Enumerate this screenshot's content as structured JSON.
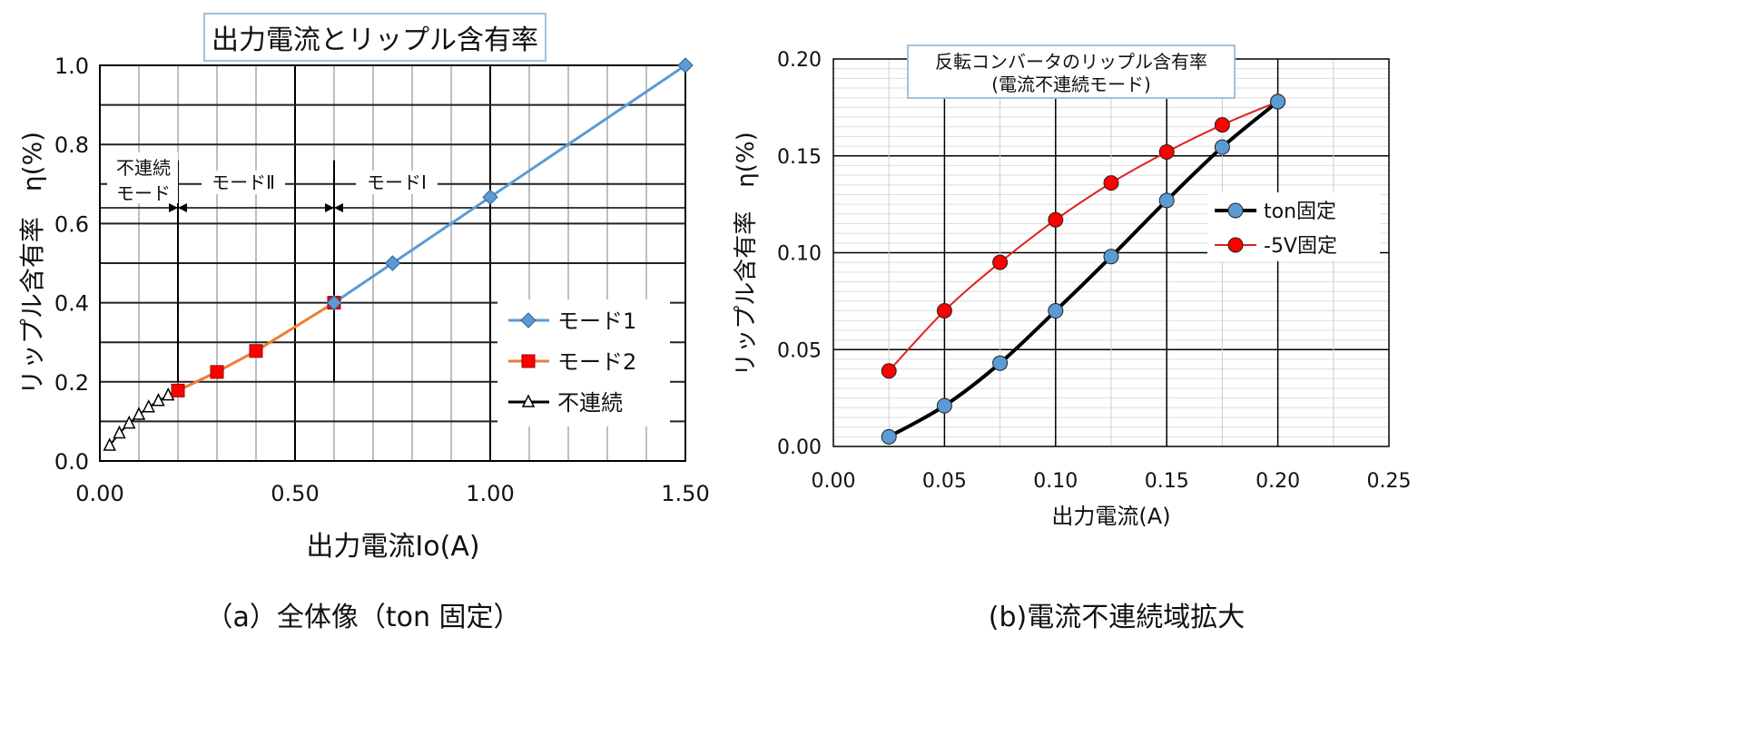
{
  "chart_data": [
    {
      "type": "line",
      "title": "出力電流とリップル含有率",
      "xlabel": "出力電流Io(A)",
      "ylabel": "リップル含有率　η(%)",
      "caption": "（a）全体像（ton 固定）",
      "xlim": [
        0,
        1.5
      ],
      "ylim": [
        0,
        1.0
      ],
      "xticks": [
        "0.00",
        "0.50",
        "1.00",
        "1.50"
      ],
      "yticks": [
        "0.0",
        "0.2",
        "0.4",
        "0.6",
        "0.8",
        "1.0"
      ],
      "grid": true,
      "legend_placement": "bottom-right",
      "annotations": {
        "discontinuous": "不連続",
        "discontinuous2": "モード",
        "mode2": "モードⅡ",
        "mode1": "モードⅠ",
        "boundaries": [
          0.2,
          0.6
        ],
        "arrow_y": 0.64
      },
      "series": [
        {
          "name": "モード1",
          "marker": "diamond",
          "color": "#5b9bd5",
          "x": [
            0.6,
            0.75,
            1.0,
            1.5
          ],
          "y": [
            0.4,
            0.5,
            0.667,
            1.0
          ]
        },
        {
          "name": "モード2",
          "marker": "square",
          "color": "#ed7d31",
          "marker_color": "#ff0000",
          "x": [
            0.2,
            0.3,
            0.4,
            0.6
          ],
          "y": [
            0.178,
            0.225,
            0.278,
            0.4
          ]
        },
        {
          "name": "不連続",
          "marker": "triangle",
          "color": "#000000",
          "x": [
            0.025,
            0.05,
            0.075,
            0.1,
            0.125,
            0.15,
            0.175,
            0.2
          ],
          "y": [
            0.039,
            0.07,
            0.095,
            0.117,
            0.136,
            0.152,
            0.166,
            0.178
          ]
        }
      ]
    },
    {
      "type": "line",
      "title": "反転コンバータのリップル含有率",
      "subtitle": "(電流不連続モード)",
      "xlabel": "出力電流(A)",
      "ylabel": "リップル含有率　η(%)",
      "caption": "(b)電流不連続域拡大",
      "xlim": [
        0,
        0.25
      ],
      "ylim": [
        0,
        0.2
      ],
      "xticks": [
        "0.00",
        "0.05",
        "0.10",
        "0.15",
        "0.20",
        "0.25"
      ],
      "yticks": [
        "0.00",
        "0.05",
        "0.10",
        "0.15",
        "0.20"
      ],
      "grid": true,
      "legend_placement": "right",
      "series": [
        {
          "name": "ton固定",
          "marker": "circle",
          "color": "#000000",
          "marker_color": "#5b9bd5",
          "x": [
            0.025,
            0.05,
            0.075,
            0.1,
            0.125,
            0.15,
            0.175,
            0.2
          ],
          "y": [
            0.005,
            0.021,
            0.043,
            0.07,
            0.098,
            0.127,
            0.1545,
            0.178
          ]
        },
        {
          "name": "-5V固定",
          "marker": "circle",
          "color": "#e02020",
          "marker_color": "#ff0000",
          "x": [
            0.025,
            0.05,
            0.075,
            0.1,
            0.125,
            0.15,
            0.175,
            0.2
          ],
          "y": [
            0.039,
            0.07,
            0.095,
            0.117,
            0.136,
            0.152,
            0.166,
            0.178
          ]
        }
      ]
    }
  ]
}
